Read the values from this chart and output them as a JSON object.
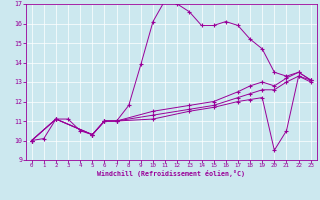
{
  "xlabel": "Windchill (Refroidissement éolien,°C)",
  "bg_color": "#cce8ef",
  "line_color": "#990099",
  "xlim": [
    -0.5,
    23.5
  ],
  "ylim": [
    9,
    17
  ],
  "xticks": [
    0,
    1,
    2,
    3,
    4,
    5,
    6,
    7,
    8,
    9,
    10,
    11,
    12,
    13,
    14,
    15,
    16,
    17,
    18,
    19,
    20,
    21,
    22,
    23
  ],
  "yticks": [
    9,
    10,
    11,
    12,
    13,
    14,
    15,
    16,
    17
  ],
  "curve1_x": [
    0,
    1,
    2,
    3,
    4,
    5,
    6,
    7,
    8,
    9,
    10,
    11,
    12,
    13,
    14,
    15,
    16,
    17,
    18,
    19,
    20,
    21,
    22,
    23
  ],
  "curve1_y": [
    10.0,
    10.1,
    11.1,
    11.1,
    10.5,
    10.3,
    11.0,
    11.0,
    11.8,
    13.9,
    16.1,
    17.2,
    17.0,
    16.6,
    15.9,
    15.9,
    16.1,
    15.9,
    15.2,
    14.7,
    13.5,
    13.3,
    13.5,
    13.1
  ],
  "curve2_x": [
    0,
    2,
    5,
    6,
    7,
    10,
    13,
    15,
    17,
    18,
    19,
    20,
    21,
    22,
    23
  ],
  "curve2_y": [
    10.0,
    11.1,
    10.3,
    11.0,
    11.0,
    11.5,
    11.8,
    12.0,
    12.5,
    12.8,
    13.0,
    12.8,
    13.2,
    13.5,
    13.1
  ],
  "curve3_x": [
    0,
    2,
    5,
    6,
    7,
    10,
    13,
    15,
    17,
    18,
    19,
    20,
    21,
    22,
    23
  ],
  "curve3_y": [
    10.0,
    11.1,
    10.3,
    11.0,
    11.0,
    11.3,
    11.6,
    11.8,
    12.2,
    12.4,
    12.6,
    12.6,
    13.0,
    13.3,
    13.1
  ],
  "curve4_x": [
    0,
    2,
    5,
    6,
    7,
    10,
    13,
    15,
    17,
    18,
    19,
    20,
    21,
    22,
    23
  ],
  "curve4_y": [
    10.0,
    11.1,
    10.3,
    11.0,
    11.0,
    11.1,
    11.5,
    11.7,
    12.0,
    12.1,
    12.2,
    9.5,
    10.5,
    13.3,
    13.0
  ]
}
